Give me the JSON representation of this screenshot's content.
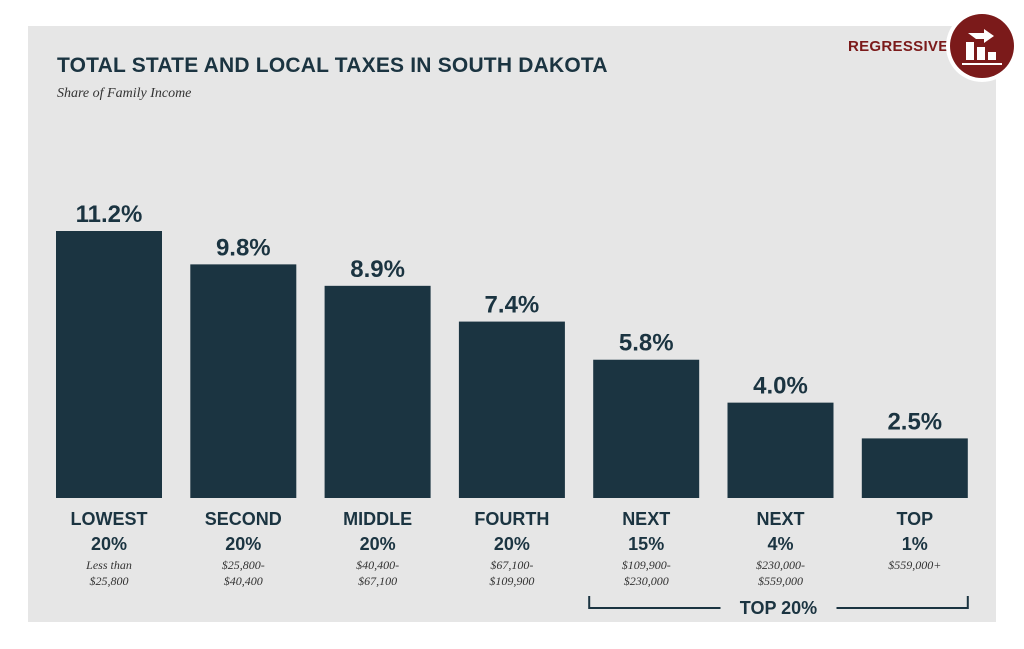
{
  "header": {
    "title": "TOTAL STATE AND LOCAL TAXES IN SOUTH DAKOTA",
    "subtitle": "Share of Family Income",
    "badge_label": "REGRESSIVE",
    "badge_icon": "regressive-chart-icon"
  },
  "colors": {
    "bar": "#1b3441",
    "panel": "#e6e6e6",
    "accent": "#7b1a1a",
    "text": "#1b3441"
  },
  "chart_data": {
    "type": "bar",
    "title": "TOTAL STATE AND LOCAL TAXES IN SOUTH DAKOTA",
    "subtitle": "Share of Family Income",
    "categories": [
      {
        "name": [
          "LOWEST",
          "20%"
        ],
        "income": [
          "Less than",
          "$25,800"
        ]
      },
      {
        "name": [
          "SECOND",
          "20%"
        ],
        "income": [
          "$25,800-",
          "$40,400"
        ]
      },
      {
        "name": [
          "MIDDLE",
          "20%"
        ],
        "income": [
          "$40,400-",
          "$67,100"
        ]
      },
      {
        "name": [
          "FOURTH",
          "20%"
        ],
        "income": [
          "$67,100-",
          "$109,900"
        ]
      },
      {
        "name": [
          "NEXT",
          "15%"
        ],
        "income": [
          "$109,900-",
          "$230,000"
        ]
      },
      {
        "name": [
          "NEXT",
          "4%"
        ],
        "income": [
          "$230,000-",
          "$559,000"
        ]
      },
      {
        "name": [
          "TOP",
          "1%"
        ],
        "income": [
          "$559,000+"
        ]
      }
    ],
    "values": [
      11.2,
      9.8,
      8.9,
      7.4,
      5.8,
      4.0,
      2.5
    ],
    "value_labels": [
      "11.2%",
      "9.8%",
      "8.9%",
      "7.4%",
      "5.8%",
      "4.0%",
      "2.5%"
    ],
    "ylim": [
      0,
      11.2
    ],
    "grid": false,
    "bracket": {
      "label": "TOP 20%",
      "from_index": 4,
      "to_index": 6
    }
  }
}
